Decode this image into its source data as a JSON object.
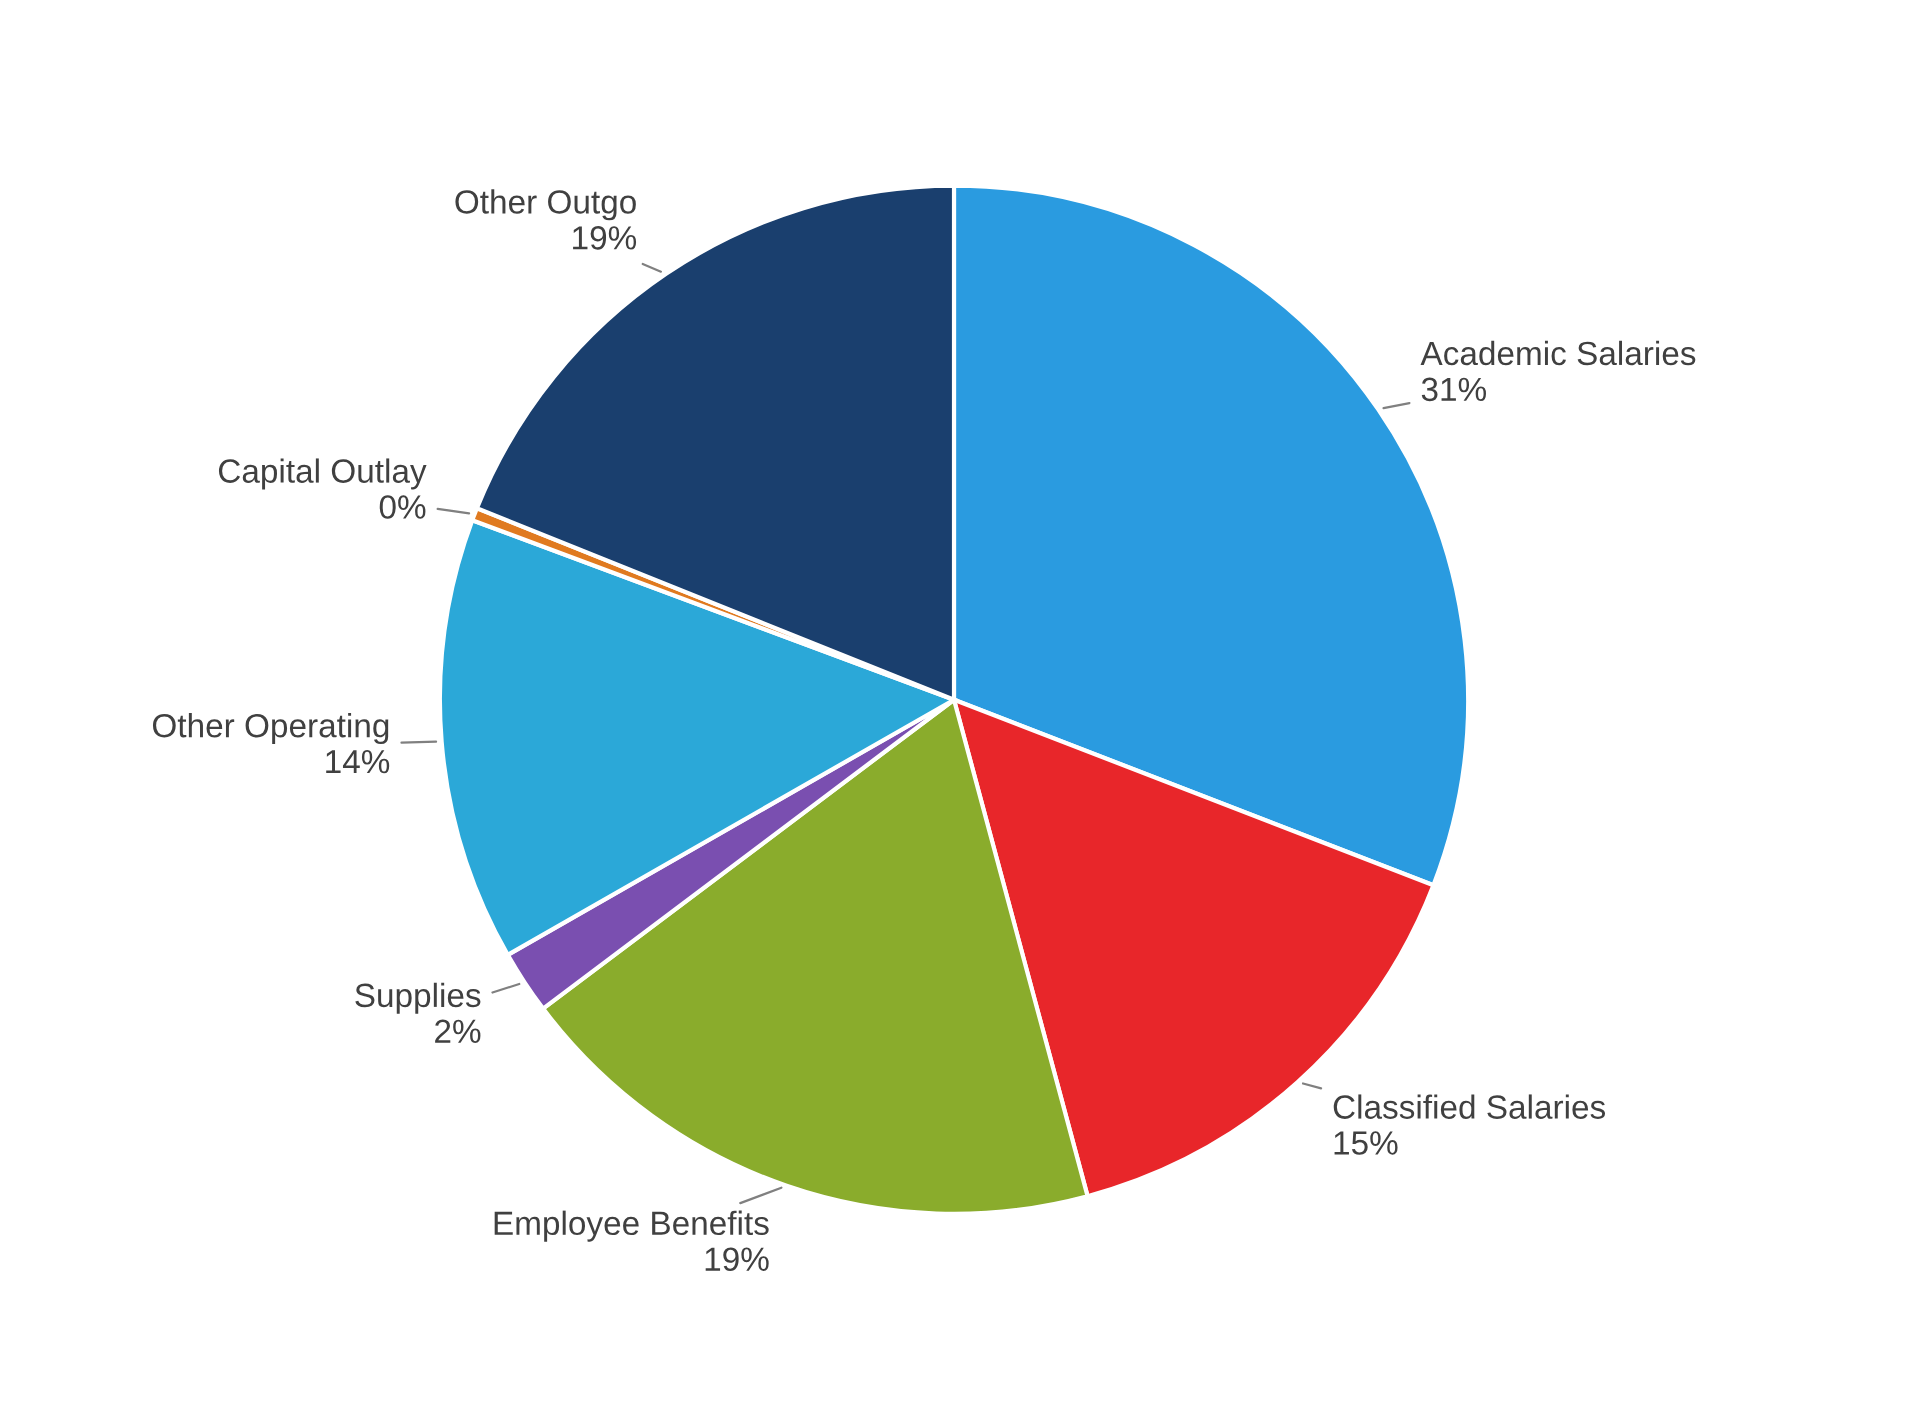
{
  "chart_data": {
    "type": "pie",
    "categories": [
      "Academic Salaries",
      "Classified Salaries",
      "Employee Benefits",
      "Supplies",
      "Other Operating",
      "Capital Outlay",
      "Other Outgo"
    ],
    "values": [
      31,
      15,
      19,
      2,
      14,
      0.4,
      19
    ],
    "value_labels": [
      "31%",
      "15%",
      "19%",
      "2%",
      "14%",
      "0%",
      "19%"
    ],
    "colors": [
      "#2a9be0",
      "#e8262a",
      "#8aac2c",
      "#7a4fb0",
      "#2ba8d8",
      "#e07a20",
      "#1a3f6e"
    ],
    "legend": false
  }
}
